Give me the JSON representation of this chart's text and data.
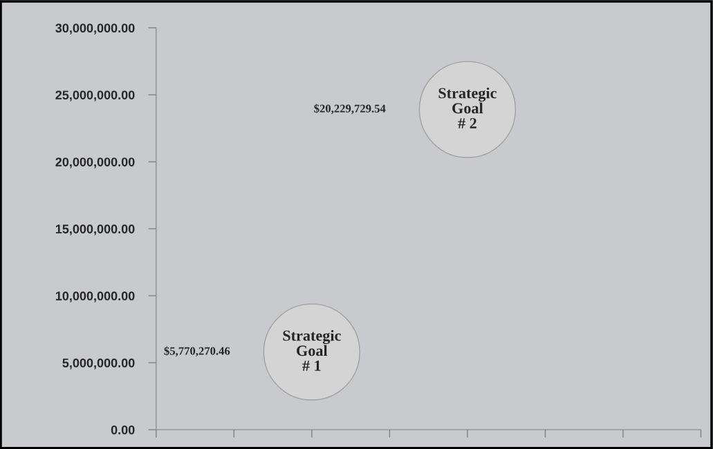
{
  "chart_data": {
    "type": "bubble",
    "categories": [
      null,
      null,
      null,
      null,
      null,
      null,
      null,
      null
    ],
    "series": [
      {
        "name": "Strategic\nGoal\n# 1",
        "color": "#d4d4d4",
        "values": [
          null,
          null,
          5800000,
          null,
          null,
          null,
          null,
          null
        ],
        "sizes": [
          null,
          null,
          1,
          null,
          null,
          null,
          null,
          null
        ]
      },
      {
        "name": "Strategic\nGoal\n# 2",
        "color": "#d4d4d4",
        "values": [
          null,
          null,
          null,
          null,
          23900000,
          null,
          null,
          null
        ],
        "sizes": [
          null,
          null,
          null,
          null,
          1,
          null,
          null,
          null
        ]
      }
    ],
    "annotations": [
      "$5,770,270.46",
      "$20,229,729.54"
    ],
    "ylim": [
      0,
      30000000
    ],
    "yticks": [
      {
        "value": 0,
        "label": "0.00"
      },
      {
        "value": 5000000,
        "label": "5,000,000.00"
      },
      {
        "value": 10000000,
        "label": "10,000,000.00"
      },
      {
        "value": 15000000,
        "label": "15,000,000.00"
      },
      {
        "value": 20000000,
        "label": "20,000,000.00"
      },
      {
        "value": 25000000,
        "label": "25,000,000.00"
      },
      {
        "value": 30000000,
        "label": "30,000,000.00"
      }
    ]
  }
}
